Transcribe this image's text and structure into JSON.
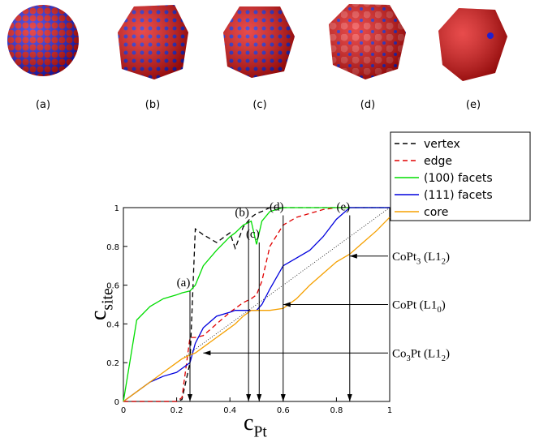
{
  "panels": [
    "(a)",
    "(b)",
    "(c)",
    "(d)",
    "(e)"
  ],
  "chart_data": {
    "type": "line",
    "xlabel": [
      "c",
      "Pt"
    ],
    "ylabel": [
      "c",
      "site"
    ],
    "xlim": [
      0,
      1
    ],
    "ylim": [
      0,
      1
    ],
    "xticks": [
      0,
      0.2,
      0.4,
      0.6,
      0.8,
      1
    ],
    "yticks": [
      0,
      0.2,
      0.4,
      0.6,
      0.8,
      1
    ],
    "x": [
      0,
      0.05,
      0.1,
      0.15,
      0.2,
      0.22,
      0.25,
      0.27,
      0.3,
      0.35,
      0.4,
      0.42,
      0.45,
      0.48,
      0.5,
      0.52,
      0.55,
      0.6,
      0.65,
      0.7,
      0.75,
      0.8,
      0.85,
      0.9,
      0.95,
      1
    ],
    "series": [
      {
        "name": "vertex",
        "color": "#000000",
        "dashed": true,
        "values": [
          0,
          0,
          0,
          0,
          0,
          0.01,
          0.2,
          0.89,
          0.86,
          0.82,
          0.87,
          0.79,
          0.9,
          0.95,
          0.97,
          0.98,
          1,
          1,
          1,
          1,
          1,
          1,
          1,
          1,
          1,
          1
        ]
      },
      {
        "name": "edge",
        "color": "#e00000",
        "dashed": true,
        "values": [
          0,
          0,
          0,
          0,
          0,
          0.02,
          0.33,
          0.33,
          0.34,
          0.4,
          0.46,
          0.48,
          0.51,
          0.53,
          0.55,
          0.62,
          0.8,
          0.91,
          0.95,
          0.97,
          0.99,
          1,
          1,
          1,
          1,
          1
        ]
      },
      {
        "name": "(100) facets",
        "color": "#00dd00",
        "dashed": false,
        "values": [
          0,
          0.42,
          0.49,
          0.53,
          0.55,
          0.56,
          0.57,
          0.6,
          0.7,
          0.78,
          0.85,
          0.87,
          0.91,
          0.93,
          0.81,
          0.93,
          0.98,
          1,
          1,
          1,
          1,
          1,
          1,
          1,
          1,
          1
        ]
      },
      {
        "name": "(111) facets",
        "color": "#0000dd",
        "dashed": false,
        "values": [
          0,
          0.05,
          0.1,
          0.13,
          0.15,
          0.17,
          0.2,
          0.3,
          0.38,
          0.44,
          0.46,
          0.47,
          0.47,
          0.47,
          0.47,
          0.5,
          0.58,
          0.7,
          0.74,
          0.78,
          0.85,
          0.94,
          1,
          1,
          1,
          1
        ]
      },
      {
        "name": "core",
        "color": "#f5a000",
        "dashed": false,
        "values": [
          0,
          0.05,
          0.1,
          0.15,
          0.2,
          0.22,
          0.24,
          0.25,
          0.28,
          0.33,
          0.38,
          0.4,
          0.44,
          0.47,
          0.47,
          0.47,
          0.47,
          0.48,
          0.53,
          0.6,
          0.66,
          0.72,
          0.76,
          0.82,
          0.88,
          0.95
        ]
      }
    ],
    "markers": [
      {
        "label": "(a)",
        "x": 0.25,
        "y": 0.57
      },
      {
        "label": "(b)",
        "x": 0.47,
        "y": 0.93
      },
      {
        "label": "(c)",
        "x": 0.51,
        "y": 0.82
      },
      {
        "label": "(d)",
        "x": 0.6,
        "y": 0.96
      },
      {
        "label": "(e)",
        "x": 0.85,
        "y": 0.96
      }
    ],
    "phases": [
      {
        "parts": [
          "CoPt",
          "3",
          " (L1",
          "2",
          ")"
        ],
        "x": 0.85,
        "y": 0.75
      },
      {
        "parts": [
          "CoPt (L1",
          "0",
          ")"
        ],
        "x": 0.6,
        "y": 0.5
      },
      {
        "parts": [
          "Co",
          "3",
          "Pt (L1",
          "2",
          ")"
        ],
        "x": 0.3,
        "y": 0.25
      }
    ]
  }
}
